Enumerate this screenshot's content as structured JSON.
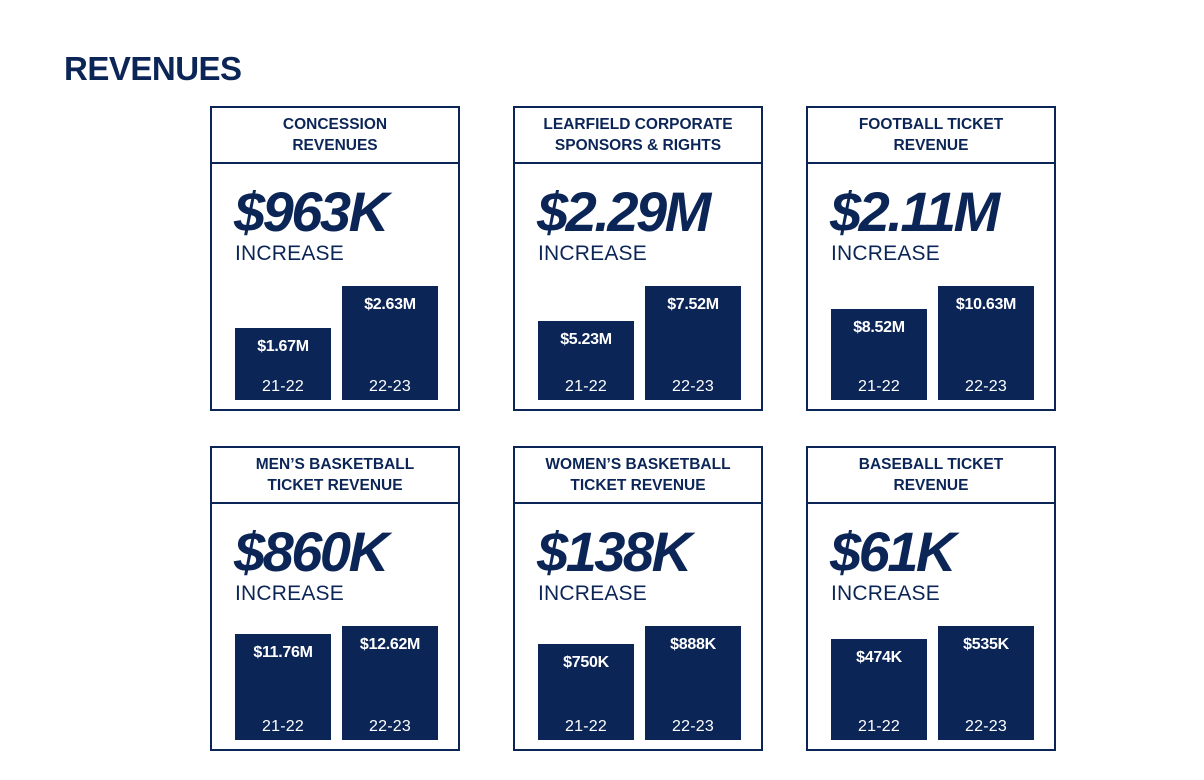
{
  "page": {
    "title": "REVENUES"
  },
  "colors": {
    "navy": "#0c2557",
    "background": "#ffffff"
  },
  "cards": [
    {
      "title": "CONCESSION\nREVENUES",
      "increase": "$963K",
      "increase_label": "INCREASE",
      "bars": [
        {
          "year": "21-22",
          "label": "$1.67M"
        },
        {
          "year": "22-23",
          "label": "$2.63M"
        }
      ]
    },
    {
      "title": "LEARFIELD CORPORATE\nSPONSORS & RIGHTS",
      "increase": "$2.29M",
      "increase_label": "INCREASE",
      "bars": [
        {
          "year": "21-22",
          "label": "$5.23M"
        },
        {
          "year": "22-23",
          "label": "$7.52M"
        }
      ]
    },
    {
      "title": "FOOTBALL TICKET\nREVENUE",
      "increase": "$2.11M",
      "increase_label": "INCREASE",
      "bars": [
        {
          "year": "21-22",
          "label": "$8.52M"
        },
        {
          "year": "22-23",
          "label": "$10.63M"
        }
      ]
    },
    {
      "title": "MEN’S BASKETBALL\nTICKET REVENUE",
      "increase": "$860K",
      "increase_label": "INCREASE",
      "bars": [
        {
          "year": "21-22",
          "label": "$11.76M"
        },
        {
          "year": "22-23",
          "label": "$12.62M"
        }
      ]
    },
    {
      "title": "WOMEN’S BASKETBALL\nTICKET REVENUE",
      "increase": "$138K",
      "increase_label": "INCREASE",
      "bars": [
        {
          "year": "21-22",
          "label": "$750K"
        },
        {
          "year": "22-23",
          "label": "$888K"
        }
      ]
    },
    {
      "title": "BASEBALL TICKET\nREVENUE",
      "increase": "$61K",
      "increase_label": "INCREASE",
      "bars": [
        {
          "year": "21-22",
          "label": "$474K"
        },
        {
          "year": "22-23",
          "label": "$535K"
        }
      ]
    }
  ],
  "chart_data": [
    {
      "type": "bar",
      "title": "CONCESSION REVENUES",
      "categories": [
        "21-22",
        "22-23"
      ],
      "values": [
        1.67,
        2.63
      ],
      "unit": "$M"
    },
    {
      "type": "bar",
      "title": "LEARFIELD CORPORATE SPONSORS & RIGHTS",
      "categories": [
        "21-22",
        "22-23"
      ],
      "values": [
        5.23,
        7.52
      ],
      "unit": "$M"
    },
    {
      "type": "bar",
      "title": "FOOTBALL TICKET REVENUE",
      "categories": [
        "21-22",
        "22-23"
      ],
      "values": [
        8.52,
        10.63
      ],
      "unit": "$M"
    },
    {
      "type": "bar",
      "title": "MEN’S BASKETBALL TICKET REVENUE",
      "categories": [
        "21-22",
        "22-23"
      ],
      "values": [
        11.76,
        12.62
      ],
      "unit": "$M"
    },
    {
      "type": "bar",
      "title": "WOMEN’S BASKETBALL TICKET REVENUE",
      "categories": [
        "21-22",
        "22-23"
      ],
      "values": [
        750,
        888
      ],
      "unit": "$K"
    },
    {
      "type": "bar",
      "title": "BASEBALL TICKET REVENUE",
      "categories": [
        "21-22",
        "22-23"
      ],
      "values": [
        474,
        535
      ],
      "unit": "$K"
    }
  ]
}
